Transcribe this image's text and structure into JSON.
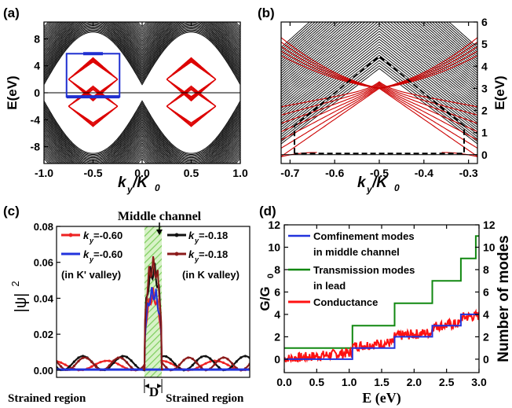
{
  "chart_data": [
    {
      "panel": "(a)",
      "type": "line",
      "xlabel_main": "k",
      "xlabel_sub": "y",
      "xlabel_tail": "/K",
      "xlabel_tail_sub": "0",
      "ylabel": "E(eV)",
      "xlim": [
        -1.0,
        1.0
      ],
      "ylim": [
        -10.5,
        10.5
      ],
      "xticks": [
        -1.0,
        -0.5,
        0.0,
        0.5,
        1.0
      ],
      "xtick_labels": [
        "-1.0",
        "-0.5",
        "0.0",
        "0.5",
        "1.0"
      ],
      "yticks": [
        -8,
        -4,
        0,
        4,
        8
      ],
      "ytick_labels": [
        "-8",
        "-4",
        "0",
        "4",
        "8"
      ],
      "series": [
        {
          "color": "#000000",
          "kind": "bulk bands"
        },
        {
          "color": "#dd0000",
          "kind": "confined bands"
        }
      ],
      "zero_line": 0,
      "blue_box": {
        "x": [
          -0.77,
          -0.23
        ],
        "y": [
          -0.6,
          5.8
        ]
      },
      "blue_segments": [
        {
          "x": [
            -0.6,
            -0.4
          ],
          "y": 5.8
        },
        {
          "x": [
            -0.77,
            -0.23
          ],
          "y": -0.6
        }
      ]
    },
    {
      "panel": "(b)",
      "type": "line",
      "xlabel_main": "k",
      "xlabel_sub": "y",
      "xlabel_tail": "/K",
      "xlabel_tail_sub": "0",
      "ylabel": "E(eV)",
      "xlim": [
        -0.72,
        -0.28
      ],
      "ylim": [
        -0.4,
        6.0
      ],
      "xticks": [
        -0.7,
        -0.6,
        -0.5,
        -0.4,
        -0.3
      ],
      "xtick_labels": [
        "-0.7",
        "-0.6",
        "-0.5",
        "-0.4",
        "-0.3"
      ],
      "yticks": [
        0,
        1,
        2,
        3,
        4,
        5,
        6
      ],
      "ytick_labels": [
        "0",
        "1",
        "2",
        "3",
        "4",
        "5",
        "6"
      ],
      "dirac_point": {
        "x": -0.5,
        "y": 3.0
      },
      "dashed_box": {
        "x": [
          -0.69,
          -0.31
        ],
        "y": [
          0.05,
          4.45
        ]
      }
    },
    {
      "panel": "(c)",
      "type": "line",
      "title": "Middle channel",
      "ylabel": "|ψ|",
      "ylabel_sup": "2",
      "xlim": [
        0,
        1
      ],
      "ylim": [
        -0.004,
        0.08
      ],
      "yticks": [
        0.0,
        0.02,
        0.04,
        0.06,
        0.08
      ],
      "ytick_labels": [
        "0.00",
        "0.02",
        "0.04",
        "0.06",
        "0.08"
      ],
      "channel": [
        0.455,
        0.545
      ],
      "channel_label": "D",
      "region_left": "Strained region",
      "region_right": "Strained region",
      "valley_left": "(in K' valley)",
      "valley_right": "(in K valley)",
      "series": [
        {
          "ky": "-0.60",
          "color": "#ee2222",
          "peak": 0.046
        },
        {
          "ky": "-0.60",
          "color": "#2233dd",
          "peak": 0.048
        },
        {
          "ky": "-0.18",
          "color": "#111111",
          "peak": 0.062
        },
        {
          "ky": "-0.18",
          "color": "#8b1a1a",
          "peak": 0.065
        }
      ],
      "legend_labels": [
        "=-0.60",
        "=-0.60",
        "=-0.18",
        "=-0.18"
      ]
    },
    {
      "panel": "(d)",
      "type": "line",
      "xlabel": "E (eV)",
      "ylabel": "G/G",
      "ylabel_sub": "0",
      "ylabel_right": "Number of modes",
      "xlim": [
        0.0,
        3.0
      ],
      "ylim": [
        -1.2,
        12.0
      ],
      "xticks": [
        0.0,
        0.5,
        1.0,
        1.5,
        2.0,
        2.5,
        3.0
      ],
      "xtick_labels": [
        "0.0",
        "0.5",
        "1.0",
        "1.5",
        "2.0",
        "2.5",
        "3.0"
      ],
      "yticks": [
        0,
        2,
        4,
        6,
        8,
        10,
        12
      ],
      "ytick_labels": [
        "0",
        "2",
        "4",
        "6",
        "8",
        "10",
        "12"
      ],
      "series": [
        {
          "name": "Comfinement modes in middle channel",
          "label1": "Comfinement modes",
          "label2": "in middle channel",
          "color": "#2233dd",
          "steps_x": [
            0.0,
            1.05,
            1.7,
            2.28,
            2.72,
            3.0
          ],
          "steps_y": [
            0,
            1,
            2,
            3,
            4,
            4
          ]
        },
        {
          "name": "Transmission modes in lead",
          "label1": "Transmission modes",
          "label2": "in lead",
          "color": "#118811",
          "steps_x": [
            0.0,
            1.05,
            1.7,
            2.28,
            2.72,
            2.95,
            3.0
          ],
          "steps_y": [
            1,
            3,
            5,
            7,
            9,
            11,
            11
          ]
        },
        {
          "name": "Conductance",
          "label1": "Conductance",
          "label2": "",
          "color": "#ff1111"
        }
      ]
    }
  ]
}
